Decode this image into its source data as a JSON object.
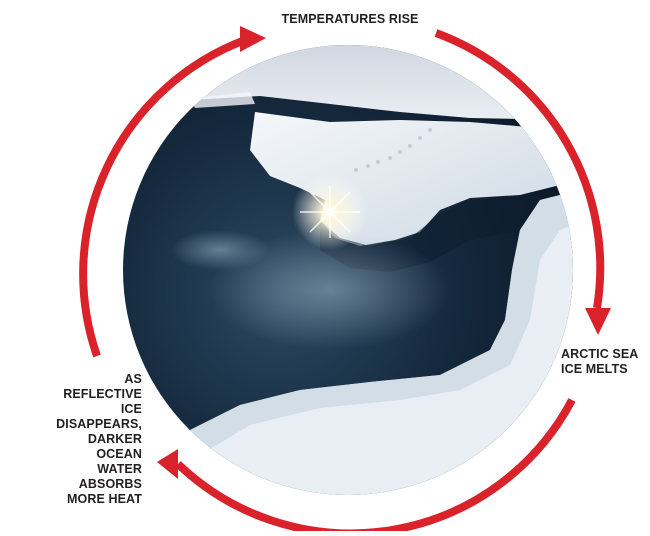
{
  "cycle": {
    "steps": [
      {
        "label": "TEMPERATURES RISE"
      },
      {
        "label_lines": [
          "ARCTIC SEA",
          "ICE MELTS"
        ]
      },
      {
        "label_lines": [
          "AS REFLECTIVE",
          "ICE DISAPPEARS,",
          "DARKER OCEAN",
          "WATER ABSORBS",
          "MORE HEAT"
        ]
      }
    ],
    "arrow_color": "#d9222a",
    "label_color": "#231f20"
  }
}
